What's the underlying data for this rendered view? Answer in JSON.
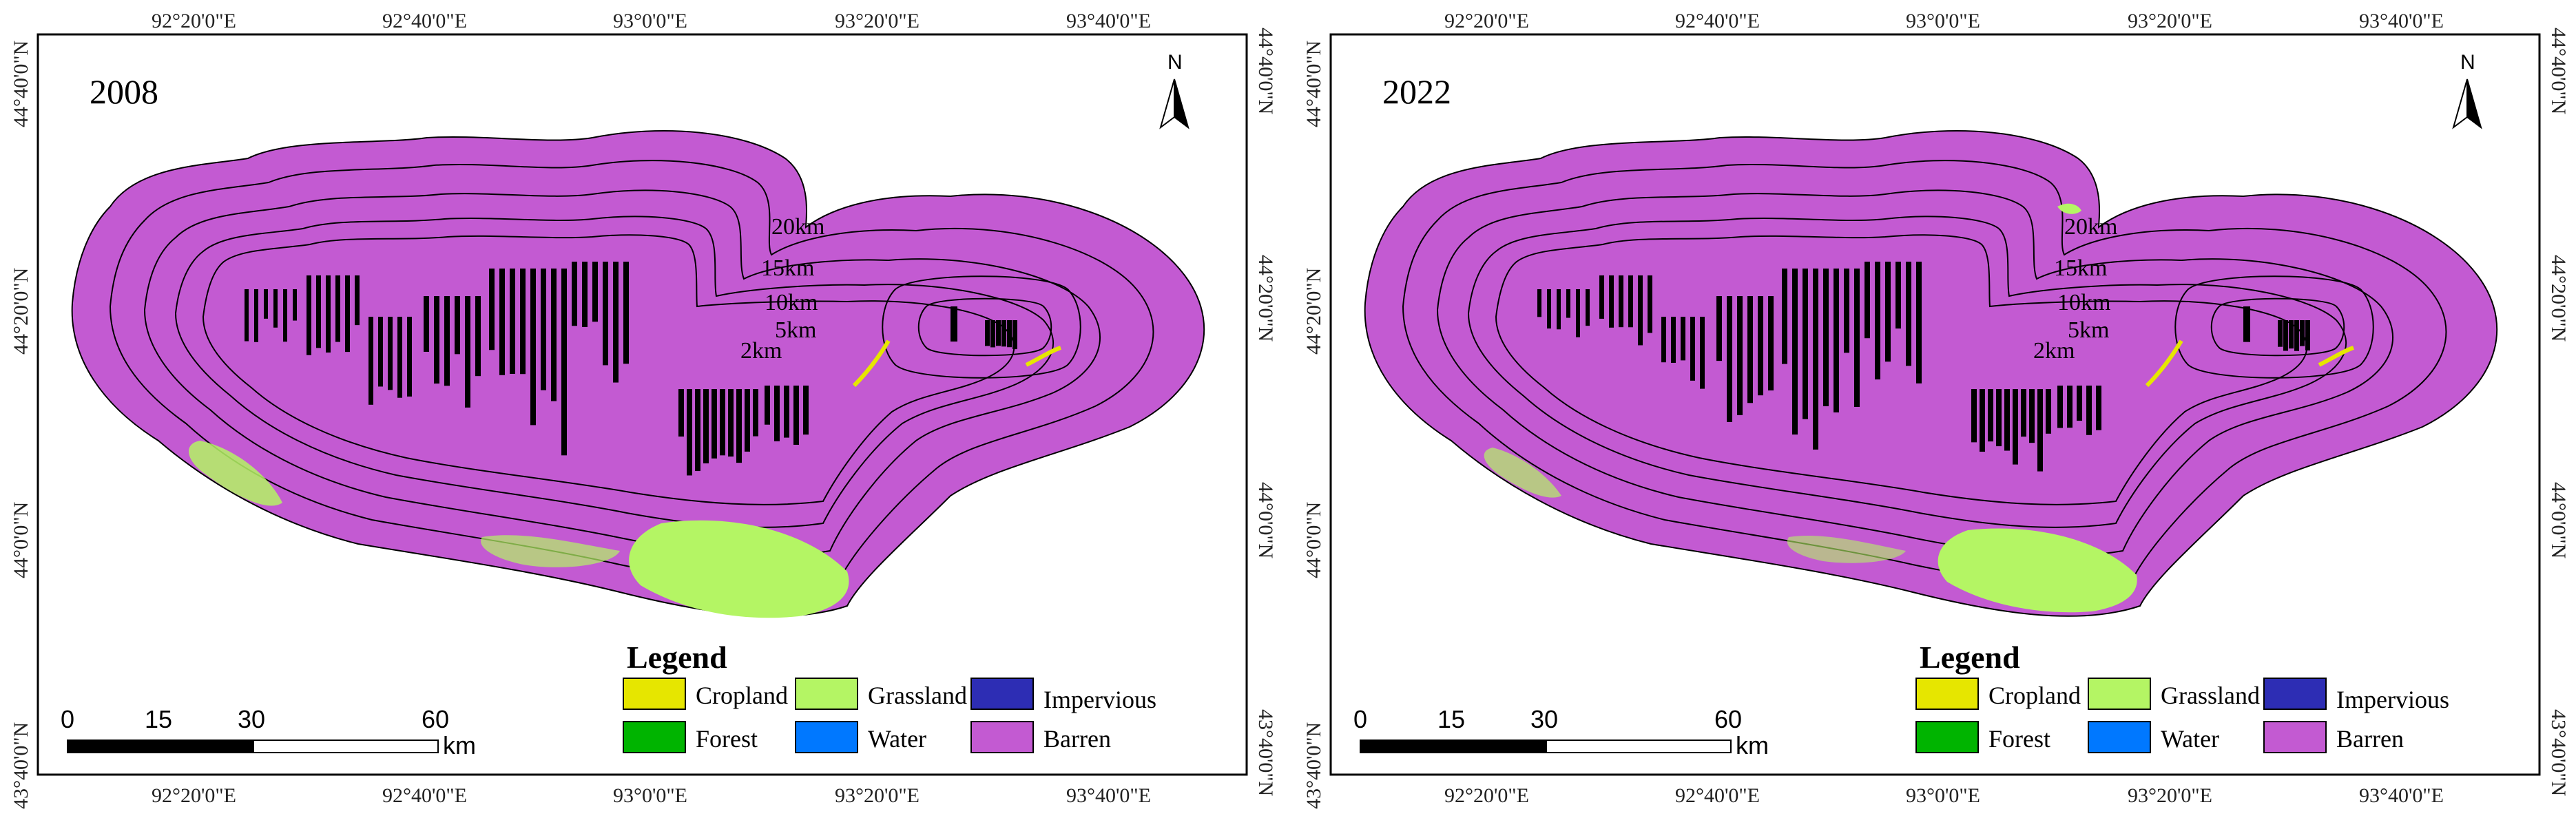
{
  "maps": [
    {
      "year": "2008",
      "top_ticks": [
        "92°20'0\"E",
        "92°40'0\"E",
        "93°0'0\"E",
        "93°20'0\"E",
        "93°40'0\"E"
      ],
      "bottom_ticks": [
        "92°20'0\"E",
        "92°40'0\"E",
        "93°0'0\"E",
        "93°20'0\"E",
        "93°40'0\"E"
      ],
      "left_ticks": [
        "44°40'0\"N",
        "44°20'0\"N",
        "44°0'0\"N",
        "43°40'0\"N"
      ],
      "right_ticks": [
        "44°40'0\"N",
        "44°20'0\"N",
        "44°0'0\"N",
        "43°40'0\"N"
      ]
    },
    {
      "year": "2022",
      "top_ticks": [
        "92°20'0\"E",
        "92°40'0\"E",
        "93°0'0\"E",
        "93°20'0\"E",
        "93°40'0\"E"
      ],
      "bottom_ticks": [
        "92°20'0\"E",
        "92°40'0\"E",
        "93°0'0\"E",
        "93°20'0\"E",
        "93°40'0\"E"
      ],
      "left_ticks": [
        "44°40'0\"N",
        "44°20'0\"N",
        "44°0'0\"N",
        "43°40'0\"N"
      ],
      "right_ticks": [
        "44°40'0\"N",
        "44°20'0\"N",
        "44°0'0\"N",
        "43°40'0\"N"
      ]
    }
  ],
  "buffer_labels": [
    "20km",
    "15km",
    "10km",
    "5km",
    "2km"
  ],
  "north_label": "N",
  "scale_bar": {
    "labels": [
      "0",
      "15",
      "30",
      "60"
    ],
    "unit": "km"
  },
  "legend": {
    "title": "Legend",
    "items": [
      {
        "label": "Cropland",
        "color": "#e6e600"
      },
      {
        "label": "Grassland",
        "color": "#b4f564"
      },
      {
        "label": "Impervious",
        "color": "#2d2db4"
      },
      {
        "label": "Forest",
        "color": "#00b400"
      },
      {
        "label": "Water",
        "color": "#0078ff"
      },
      {
        "label": "Barren",
        "color": "#c35ad2"
      }
    ]
  },
  "colors": {
    "barren": "#c35ad2",
    "grassland": "#b4f564",
    "cropland": "#e6e600",
    "panel": "#000000"
  }
}
